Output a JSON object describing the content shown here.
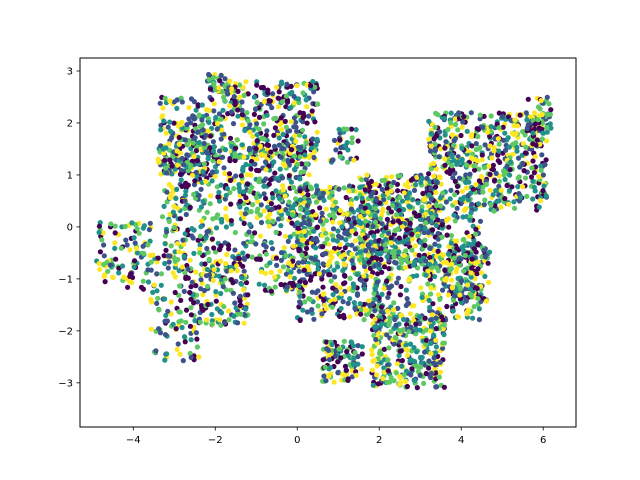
{
  "chart_data": {
    "type": "scatter",
    "title": "",
    "xlabel": "",
    "ylabel": "",
    "xlim": [
      -5.3,
      6.8
    ],
    "ylim": [
      -3.85,
      3.25
    ],
    "xticks": [
      -4,
      -2,
      0,
      2,
      4,
      6
    ],
    "yticks": [
      -3,
      -2,
      -1,
      0,
      1,
      2,
      3
    ],
    "grid": false,
    "legend": "none",
    "colormap": "viridis",
    "palette": [
      "#440154",
      "#3b528b",
      "#21918c",
      "#5ec962",
      "#fde725"
    ],
    "point_count_estimate": 4000,
    "seed": 7,
    "regions": [
      {
        "x": [
          -1.9,
          0.5
        ],
        "y": [
          1.3,
          2.8
        ],
        "weight": 0.9
      },
      {
        "x": [
          -3.4,
          -1.9
        ],
        "y": [
          1.0,
          2.5
        ],
        "weight": 0.6
      },
      {
        "x": [
          -3.3,
          -1.0
        ],
        "y": [
          -0.6,
          1.6
        ],
        "weight": 1.0
      },
      {
        "x": [
          -1.0,
          0.3
        ],
        "y": [
          0.0,
          1.6
        ],
        "weight": 0.6
      },
      {
        "x": [
          -4.9,
          -3.4
        ],
        "y": [
          -1.2,
          0.1
        ],
        "weight": 0.3
      },
      {
        "x": [
          -3.6,
          -2.3
        ],
        "y": [
          -2.6,
          -0.5
        ],
        "weight": 0.4
      },
      {
        "x": [
          -2.4,
          -1.2
        ],
        "y": [
          -1.9,
          -0.6
        ],
        "weight": 0.4
      },
      {
        "x": [
          -1.0,
          0.2
        ],
        "y": [
          -1.3,
          -0.1
        ],
        "weight": 0.3
      },
      {
        "x": [
          0.0,
          2.0
        ],
        "y": [
          -1.8,
          0.8
        ],
        "weight": 1.6
      },
      {
        "x": [
          1.5,
          3.5
        ],
        "y": [
          -0.8,
          1.0
        ],
        "weight": 1.2
      },
      {
        "x": [
          3.2,
          6.1
        ],
        "y": [
          0.3,
          2.2
        ],
        "weight": 1.6
      },
      {
        "x": [
          2.0,
          4.5
        ],
        "y": [
          -1.8,
          0.3
        ],
        "weight": 1.0
      },
      {
        "x": [
          1.8,
          3.6
        ],
        "y": [
          -3.1,
          -1.7
        ],
        "weight": 0.9
      },
      {
        "x": [
          3.6,
          4.7
        ],
        "y": [
          -1.5,
          -0.3
        ],
        "weight": 0.4
      },
      {
        "x": [
          0.6,
          1.6
        ],
        "y": [
          -3.0,
          -2.2
        ],
        "weight": 0.3
      },
      {
        "x": [
          0.8,
          1.5
        ],
        "y": [
          1.2,
          1.9
        ],
        "weight": 0.1
      },
      {
        "x": [
          5.6,
          6.2
        ],
        "y": [
          1.8,
          2.5
        ],
        "weight": 0.15
      },
      {
        "x": [
          -2.2,
          -1.5
        ],
        "y": [
          2.6,
          2.95
        ],
        "weight": 0.1
      }
    ]
  }
}
